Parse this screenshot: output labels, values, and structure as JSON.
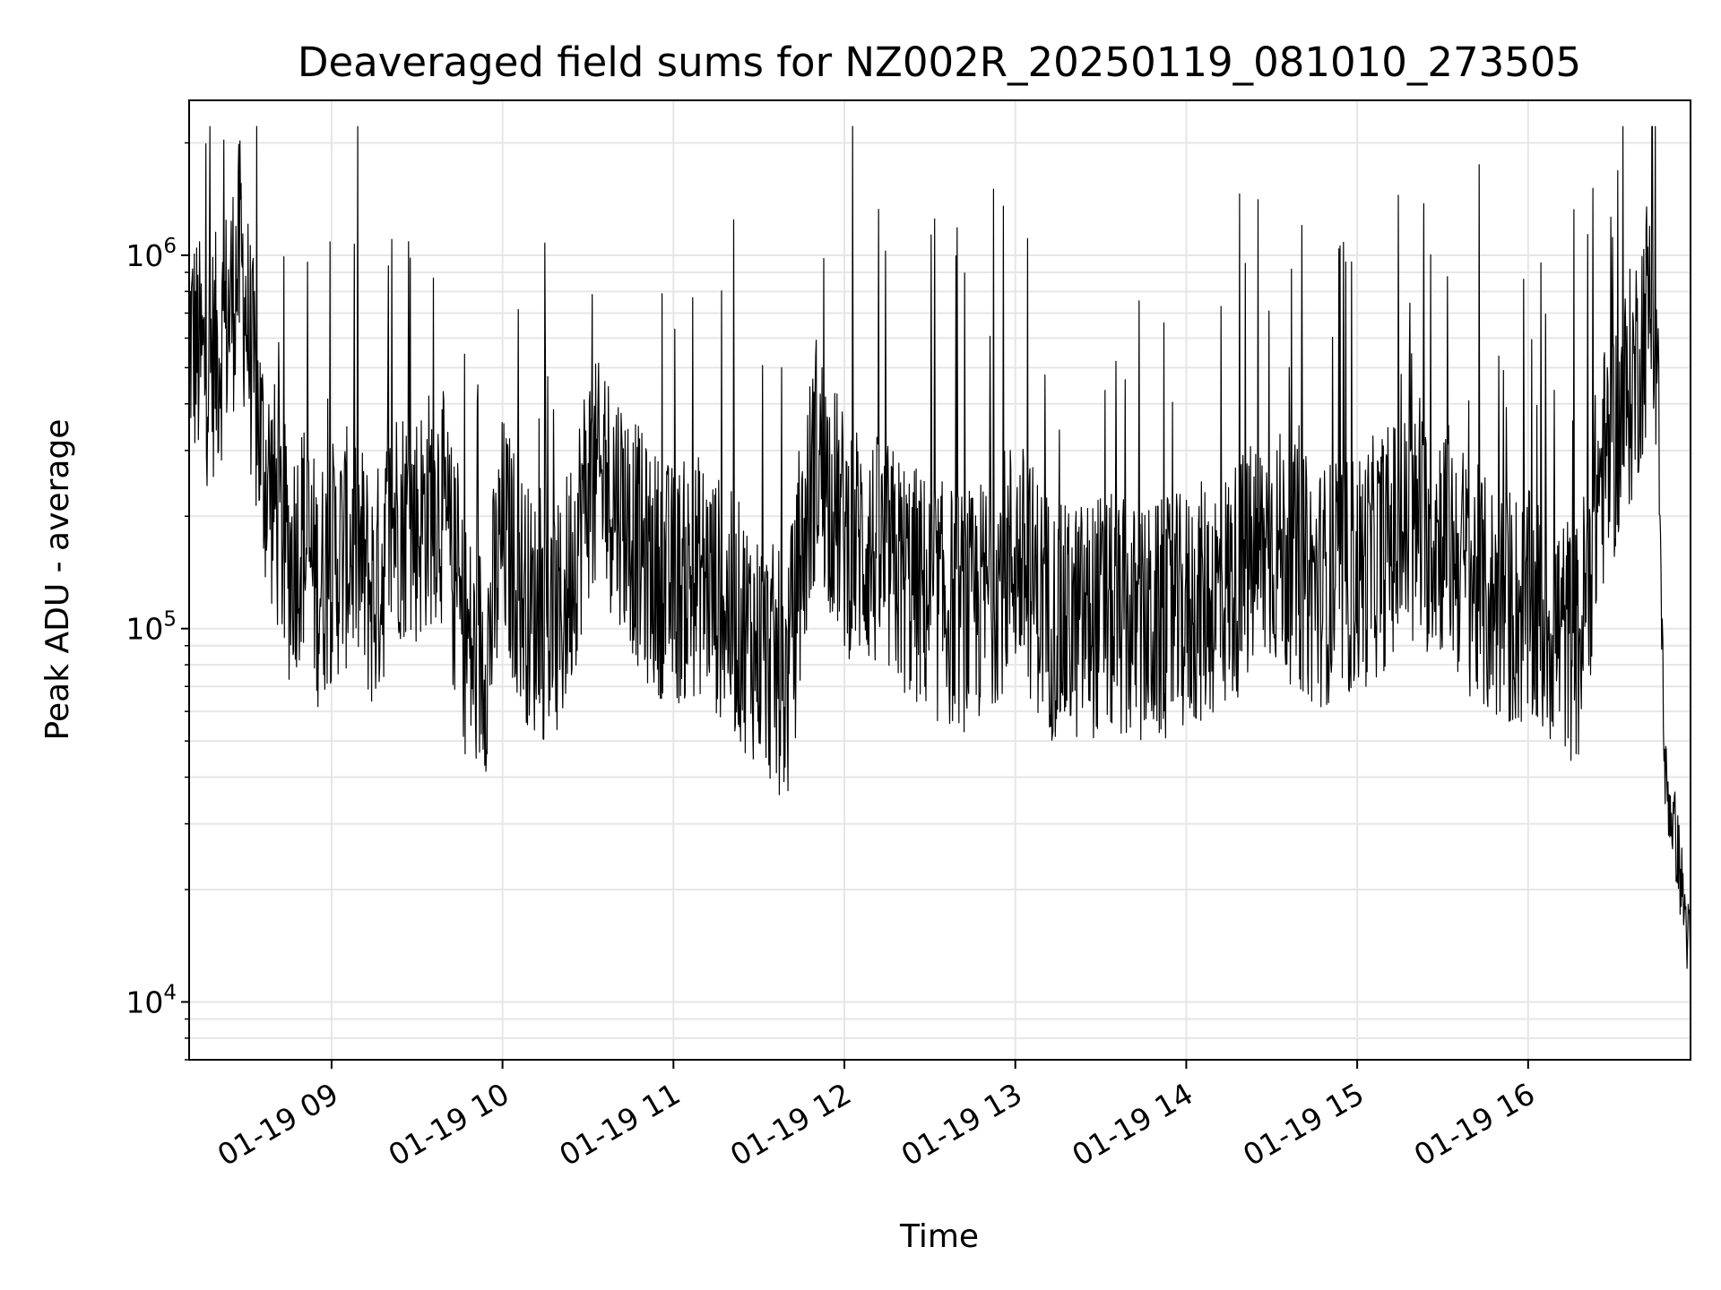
{
  "chart_data": {
    "type": "line",
    "title": "Deaveraged field sums for NZ002R_20250119_081010_273505",
    "xlabel": "Time",
    "ylabel": "Peak ADU - average",
    "x_tick_labels": [
      "01-19 09",
      "01-19 10",
      "01-19 11",
      "01-19 12",
      "01-19 13",
      "01-19 14",
      "01-19 15",
      "01-19 16"
    ],
    "y_tick_values": [
      10000,
      100000,
      1000000
    ],
    "y_tick_labels": [
      {
        "base": "10",
        "exp": "4"
      },
      {
        "base": "10",
        "exp": "5"
      },
      {
        "base": "10",
        "exp": "6"
      }
    ],
    "y_scale": "log",
    "ylim": [
      7000,
      2600000
    ],
    "xlim": [
      "2025-01-19 08:10",
      "2025-01-19 16:57"
    ],
    "grid": true,
    "line_color": "#000000",
    "series": [
      {
        "x": [
          "2025-01-19 08:10",
          "2025-01-19 08:15",
          "2025-01-19 08:20",
          "2025-01-19 08:24",
          "2025-01-19 08:28",
          "2025-01-19 08:32",
          "2025-01-19 08:36",
          "2025-01-19 08:40",
          "2025-01-19 08:45",
          "2025-01-19 08:50",
          "2025-01-19 08:55",
          "2025-01-19 09:00",
          "2025-01-19 09:08",
          "2025-01-19 09:15",
          "2025-01-19 09:22",
          "2025-01-19 09:30",
          "2025-01-19 09:38",
          "2025-01-19 09:45",
          "2025-01-19 09:50",
          "2025-01-19 09:55",
          "2025-01-19 10:00",
          "2025-01-19 10:10",
          "2025-01-19 10:20",
          "2025-01-19 10:30",
          "2025-01-19 10:40",
          "2025-01-19 10:50",
          "2025-01-19 11:00",
          "2025-01-19 11:10",
          "2025-01-19 11:20",
          "2025-01-19 11:30",
          "2025-01-19 11:40",
          "2025-01-19 11:45",
          "2025-01-19 11:50",
          "2025-01-19 12:00",
          "2025-01-19 12:10",
          "2025-01-19 12:20",
          "2025-01-19 12:30",
          "2025-01-19 12:45",
          "2025-01-19 13:00",
          "2025-01-19 13:15",
          "2025-01-19 13:30",
          "2025-01-19 13:45",
          "2025-01-19 14:00",
          "2025-01-19 14:15",
          "2025-01-19 14:30",
          "2025-01-19 14:45",
          "2025-01-19 15:00",
          "2025-01-19 15:15",
          "2025-01-19 15:30",
          "2025-01-19 15:45",
          "2025-01-19 16:00",
          "2025-01-19 16:10",
          "2025-01-19 16:18",
          "2025-01-19 16:25",
          "2025-01-19 16:32",
          "2025-01-19 16:38",
          "2025-01-19 16:43",
          "2025-01-19 16:45",
          "2025-01-19 16:48",
          "2025-01-19 16:52",
          "2025-01-19 16:57"
        ],
        "y": [
          620000,
          500000,
          550000,
          700000,
          1000000,
          500000,
          280000,
          220000,
          150000,
          180000,
          130000,
          150000,
          170000,
          120000,
          200000,
          190000,
          230000,
          110000,
          80000,
          90000,
          180000,
          110000,
          100000,
          250000,
          230000,
          150000,
          130000,
          140000,
          110000,
          90000,
          70000,
          150000,
          300000,
          180000,
          160000,
          140000,
          120000,
          110000,
          160000,
          100000,
          110000,
          100000,
          110000,
          130000,
          170000,
          130000,
          140000,
          180000,
          180000,
          120000,
          110000,
          100000,
          90000,
          250000,
          350000,
          500000,
          800000,
          600000,
          40000,
          27000,
          13000
        ]
      }
    ]
  }
}
